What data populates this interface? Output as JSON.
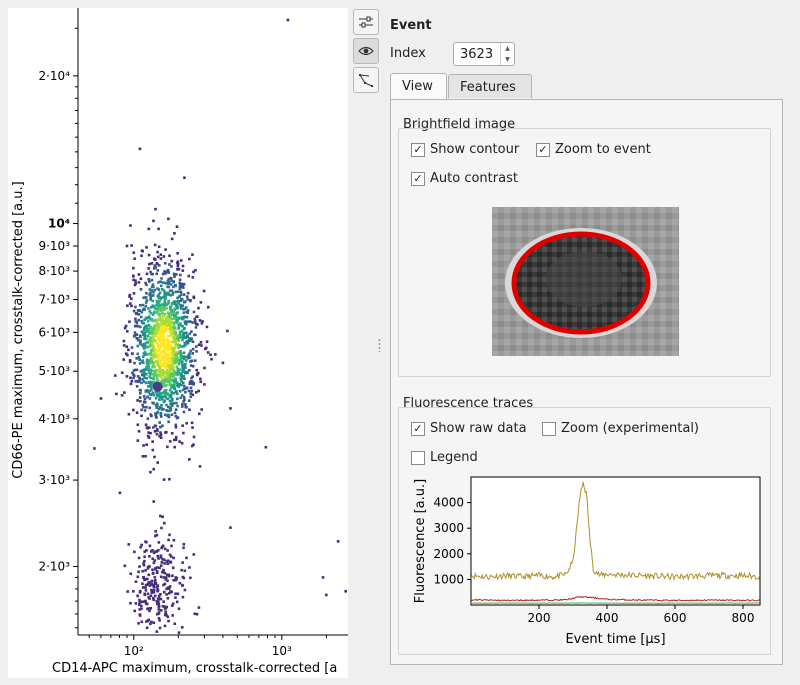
{
  "colors": {
    "accent": "#473c8b",
    "trace_main": "#b08d2c",
    "trace_red": "#b22222",
    "trace_green": "#4caf50",
    "contour": "#e00000"
  },
  "scatter": {
    "xlabel": "CD14-APC maximum, crosstalk-corrected [a",
    "ylabel": "CD66-PE maximum, crosstalk-corrected [a.u.]",
    "x_ticks": [
      "10²",
      "10³"
    ],
    "y_ticks": [
      "2·10⁴",
      "10⁴",
      "9·10³",
      "8·10³",
      "7·10³",
      "6·10³",
      "5·10³",
      "4·10³",
      "3·10³",
      "2·10³"
    ],
    "selected_point": {
      "x": 145,
      "y": 4650
    },
    "x_scale": "log",
    "y_scale": "log",
    "xlim": [
      42,
      2800
    ],
    "ylim": [
      1450,
      27500
    ]
  },
  "toolbar": {
    "icons": [
      "sliders-icon",
      "eye-icon",
      "polygon-select-icon"
    ]
  },
  "event": {
    "title": "Event",
    "index_label": "Index",
    "index_value": "3623"
  },
  "tabs": [
    {
      "label": "View",
      "active": true
    },
    {
      "label": "Features",
      "active": false
    }
  ],
  "brightfield": {
    "title": "Brightfield image",
    "show_contour": {
      "label": "Show contour",
      "checked": true
    },
    "zoom_to_event": {
      "label": "Zoom to event",
      "checked": true
    },
    "auto_contrast": {
      "label": "Auto contrast",
      "checked": true
    }
  },
  "fluorescence": {
    "title": "Fluorescence traces",
    "show_raw": {
      "label": "Show raw data",
      "checked": true
    },
    "zoom_exp": {
      "label": "Zoom (experimental)",
      "checked": false
    },
    "legend": {
      "label": "Legend",
      "checked": false
    }
  },
  "chart_data": {
    "type": "line",
    "title": "",
    "xlabel": "Event time [µs]",
    "ylabel": "Fluorescence [a.u.]",
    "xlim": [
      0,
      850
    ],
    "ylim": [
      0,
      5000
    ],
    "x_ticks": [
      200,
      400,
      600,
      800
    ],
    "y_ticks": [
      1000,
      2000,
      3000,
      4000
    ],
    "series": [
      {
        "color": "#b08d2c",
        "x": [
          0,
          50,
          100,
          150,
          200,
          250,
          280,
          300,
          310,
          320,
          330,
          340,
          350,
          360,
          380,
          400,
          500,
          600,
          700,
          800,
          850
        ],
        "y": [
          1150,
          1100,
          1150,
          1100,
          1150,
          1100,
          1200,
          1700,
          2900,
          4200,
          4800,
          4300,
          2500,
          1400,
          1150,
          1200,
          1150,
          1100,
          1150,
          1150,
          1100
        ]
      },
      {
        "color": "#b22222",
        "x": [
          0,
          100,
          200,
          280,
          320,
          350,
          400,
          500,
          600,
          700,
          850
        ],
        "y": [
          200,
          180,
          190,
          200,
          320,
          300,
          220,
          190,
          180,
          190,
          180
        ]
      },
      {
        "color": "#4caf50",
        "x": [
          0,
          100,
          200,
          300,
          400,
          500,
          600,
          700,
          850
        ],
        "y": [
          70,
          75,
          70,
          80,
          75,
          70,
          75,
          70,
          75
        ]
      }
    ]
  }
}
